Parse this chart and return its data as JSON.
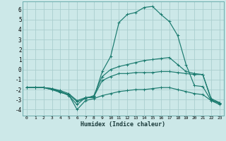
{
  "xlabel": "Humidex (Indice chaleur)",
  "xlim": [
    -0.5,
    23.5
  ],
  "ylim": [
    -4.6,
    6.8
  ],
  "xticks": [
    0,
    1,
    2,
    3,
    4,
    5,
    6,
    7,
    8,
    9,
    10,
    11,
    12,
    13,
    14,
    15,
    16,
    17,
    18,
    19,
    20,
    21,
    22,
    23
  ],
  "yticks": [
    -4,
    -3,
    -2,
    -1,
    0,
    1,
    2,
    3,
    4,
    5,
    6
  ],
  "bg_color": "#cce8e8",
  "line_color": "#1a7a6e",
  "grid_color": "#aacece",
  "curves": [
    {
      "x": [
        0,
        1,
        2,
        3,
        4,
        5,
        6,
        7,
        8,
        9,
        10,
        11,
        12,
        13,
        14,
        15,
        16,
        17,
        18,
        19,
        20,
        21,
        22,
        23
      ],
      "y": [
        -1.8,
        -1.8,
        -1.8,
        -1.9,
        -2.2,
        -2.6,
        -3.5,
        -2.8,
        -2.8,
        -0.2,
        1.3,
        4.7,
        5.5,
        5.7,
        6.2,
        6.3,
        5.5,
        4.8,
        3.4,
        0.5,
        -1.6,
        -1.7,
        -3.1,
        -3.3
      ]
    },
    {
      "x": [
        0,
        1,
        2,
        3,
        4,
        5,
        6,
        7,
        8,
        9,
        10,
        11,
        12,
        13,
        14,
        15,
        16,
        17,
        18,
        19,
        20,
        21,
        22,
        23
      ],
      "y": [
        -1.8,
        -1.8,
        -1.8,
        -2.0,
        -2.3,
        -2.5,
        -3.2,
        -2.9,
        -2.6,
        -0.7,
        0.0,
        0.3,
        0.5,
        0.7,
        0.9,
        1.0,
        1.1,
        1.2,
        0.5,
        -0.2,
        -0.4,
        -0.5,
        -2.9,
        -3.3
      ]
    },
    {
      "x": [
        0,
        1,
        2,
        3,
        4,
        5,
        6,
        7,
        8,
        9,
        10,
        11,
        12,
        13,
        14,
        15,
        16,
        17,
        18,
        19,
        20,
        21,
        22,
        23
      ],
      "y": [
        -1.8,
        -1.8,
        -1.8,
        -1.9,
        -2.1,
        -2.4,
        -3.1,
        -2.8,
        -2.7,
        -1.1,
        -0.7,
        -0.4,
        -0.4,
        -0.3,
        -0.3,
        -0.3,
        -0.2,
        -0.2,
        -0.3,
        -0.4,
        -0.5,
        -0.5,
        -3.0,
        -3.4
      ]
    },
    {
      "x": [
        0,
        1,
        2,
        3,
        4,
        5,
        6,
        7,
        8,
        9,
        10,
        11,
        12,
        13,
        14,
        15,
        16,
        17,
        18,
        19,
        20,
        21,
        22,
        23
      ],
      "y": [
        -1.8,
        -1.8,
        -1.8,
        -2.0,
        -2.2,
        -2.5,
        -4.0,
        -3.1,
        -2.9,
        -2.6,
        -2.4,
        -2.2,
        -2.1,
        -2.0,
        -2.0,
        -1.9,
        -1.8,
        -1.8,
        -2.0,
        -2.2,
        -2.4,
        -2.5,
        -3.1,
        -3.5
      ]
    }
  ]
}
